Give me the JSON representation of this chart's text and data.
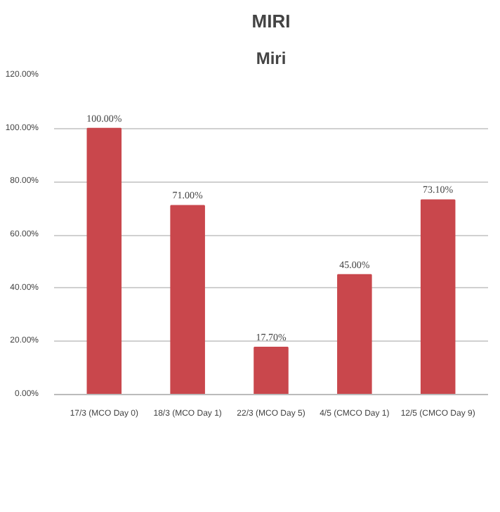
{
  "chart_data": {
    "type": "bar",
    "title": "MIRI",
    "subtitle": "Miri",
    "categories": [
      "17/3 (MCO Day 0)",
      "18/3 (MCO Day 1)",
      "22/3 (MCO Day 5)",
      "4/5 (CMCO Day 1)",
      "12/5 (CMCO Day 9)"
    ],
    "values": [
      100,
      71,
      17.7,
      45,
      73.1
    ],
    "value_labels": [
      "100.00%",
      "71.00%",
      "17.70%",
      "45.00%",
      "73.10%"
    ],
    "color": "#c9474c",
    "ylim": [
      0,
      120
    ],
    "yticks": [
      {
        "value": 0,
        "label": "0.00%"
      },
      {
        "value": 20,
        "label": "20.00%"
      },
      {
        "value": 40,
        "label": "40.00%"
      },
      {
        "value": 60,
        "label": "60.00%"
      },
      {
        "value": 80,
        "label": "80.00%"
      },
      {
        "value": 100,
        "label": "100.00%"
      },
      {
        "value": 120,
        "label": "120.00%"
      }
    ],
    "grid": "y"
  }
}
